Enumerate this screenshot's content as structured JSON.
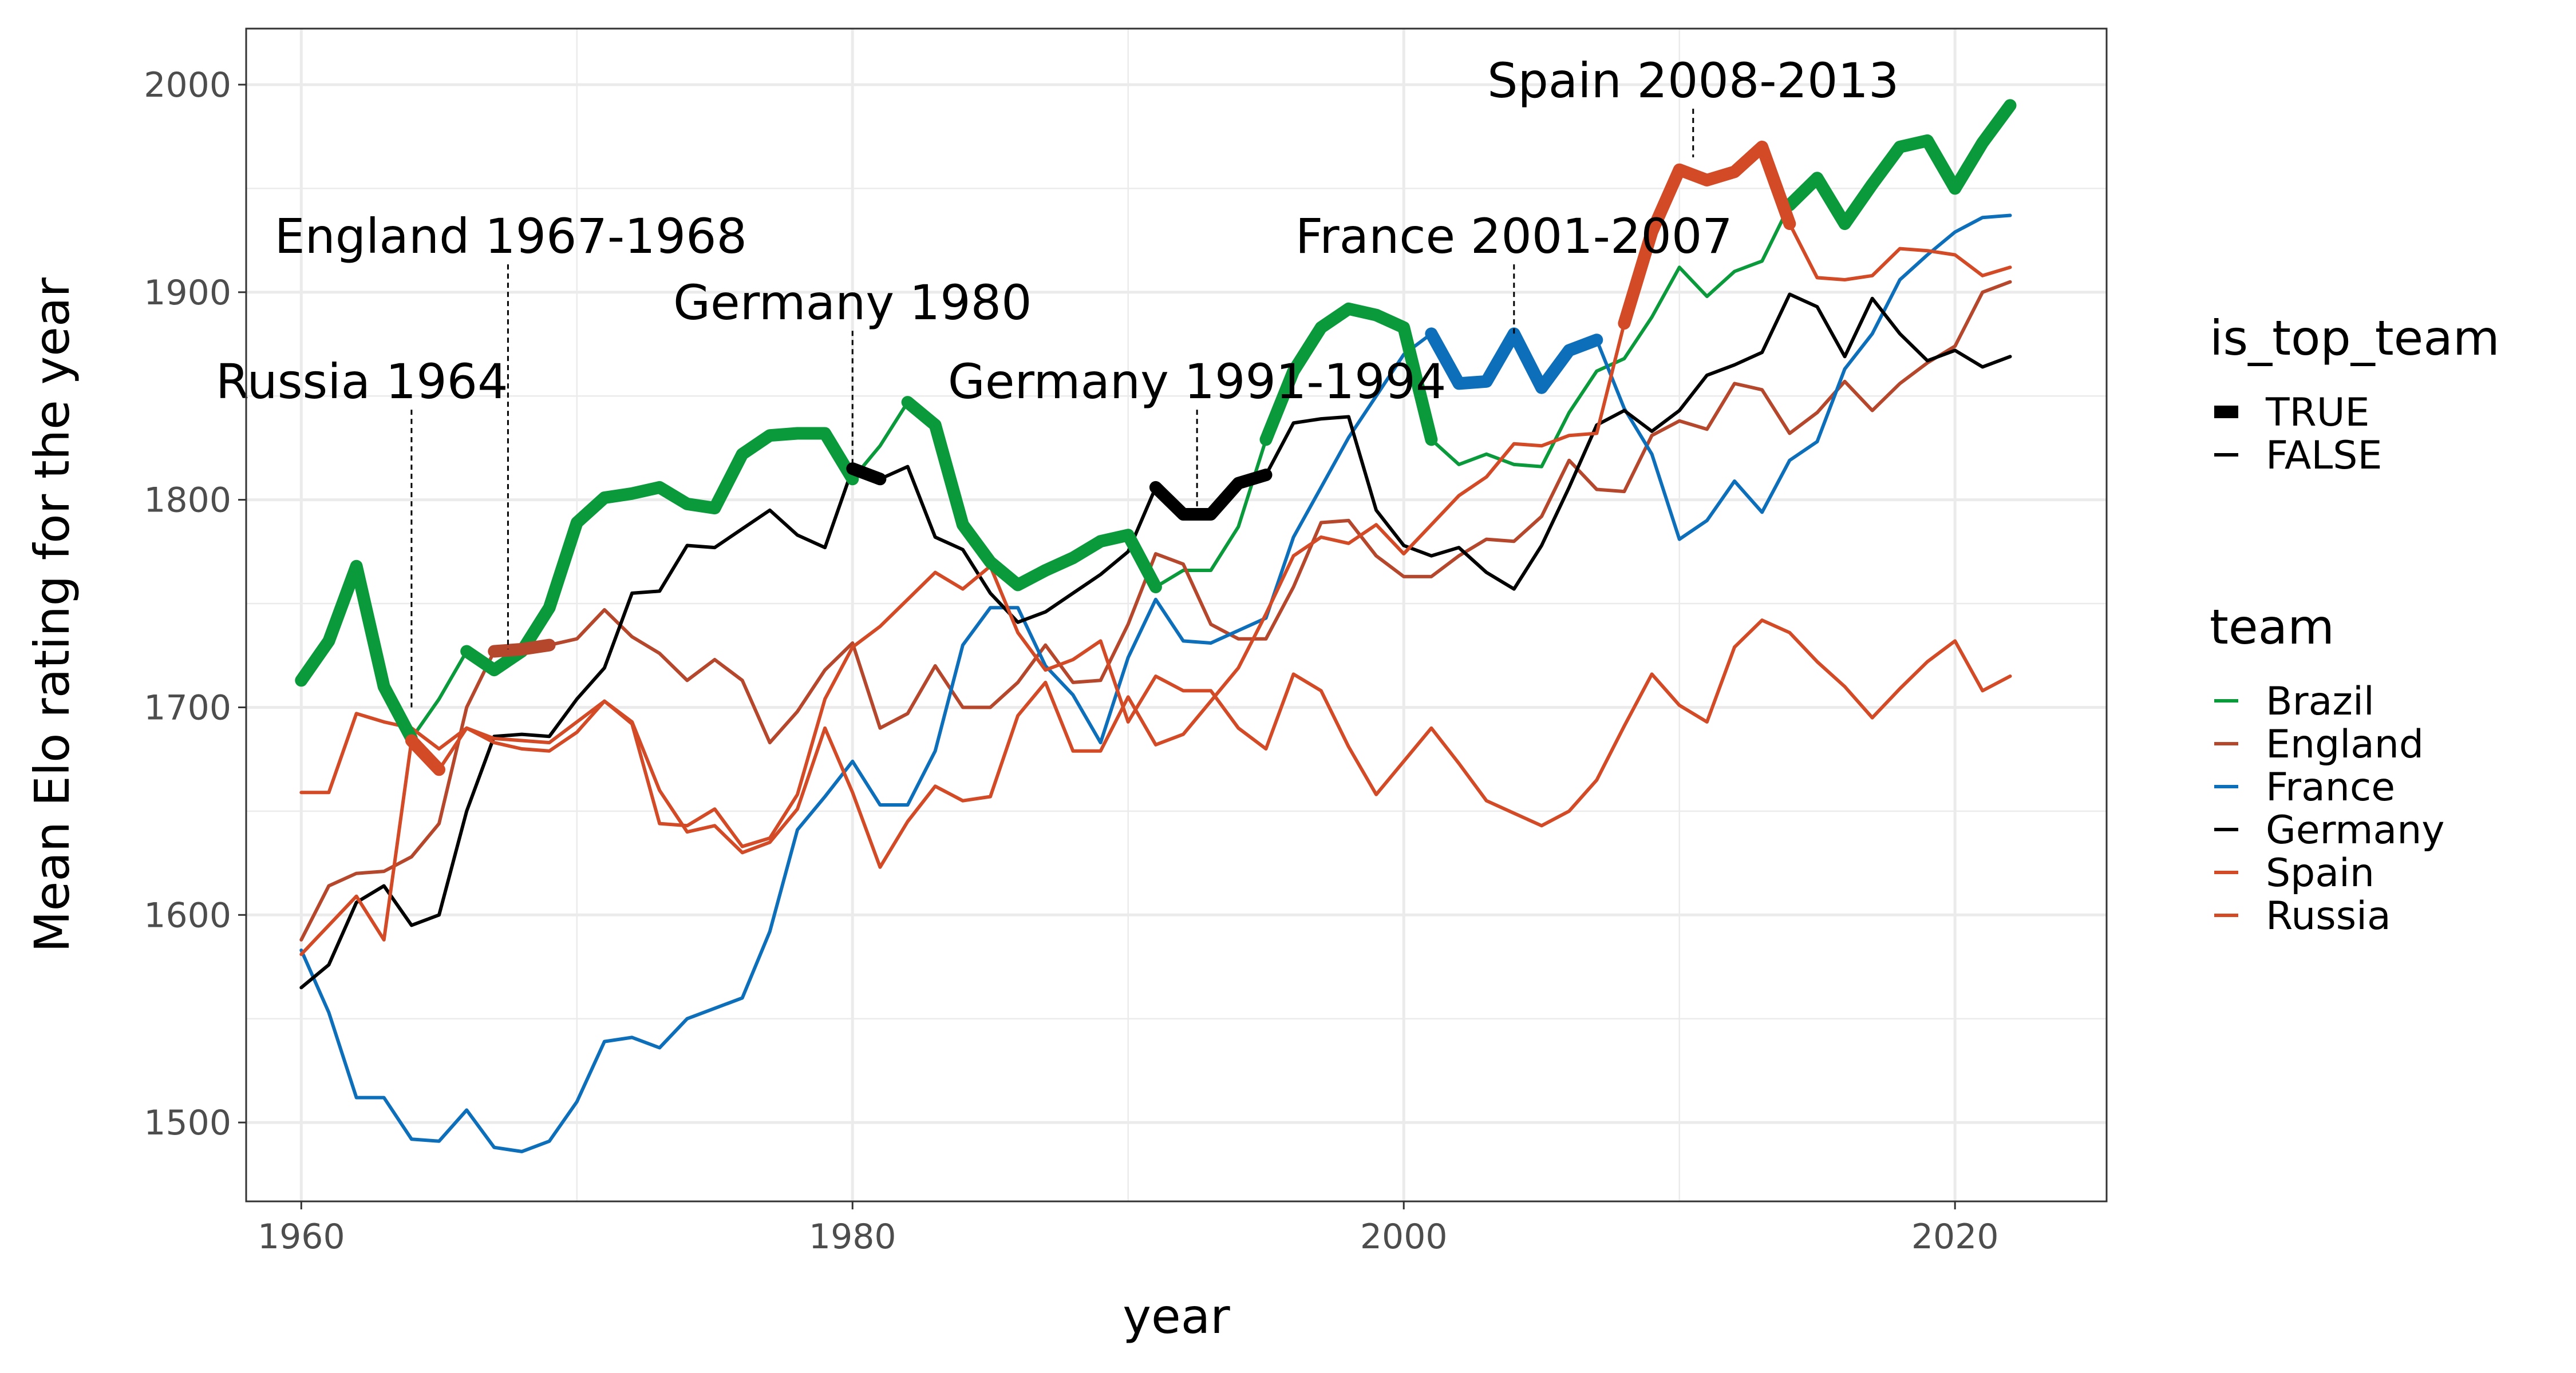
{
  "chart_data": {
    "type": "line",
    "xlabel": "year",
    "ylabel": "Mean Elo rating for the year",
    "xlim": [
      1958,
      2025.5
    ],
    "ylim": [
      1462,
      2027
    ],
    "x_ticks": [
      1960,
      1980,
      2000,
      2020
    ],
    "x_tick_labels": [
      "1960",
      "1980",
      "2000",
      "2020"
    ],
    "y_ticks": [
      1500,
      1600,
      1700,
      1800,
      1900,
      2000
    ],
    "y_tick_labels": [
      "1500",
      "1600",
      "1700",
      "1800",
      "1900",
      "2000"
    ],
    "grid": true,
    "years": [
      1960,
      1961,
      1962,
      1963,
      1964,
      1965,
      1966,
      1967,
      1968,
      1969,
      1970,
      1971,
      1972,
      1973,
      1974,
      1975,
      1976,
      1977,
      1978,
      1979,
      1980,
      1981,
      1982,
      1983,
      1984,
      1985,
      1986,
      1987,
      1988,
      1989,
      1990,
      1991,
      1992,
      1993,
      1994,
      1995,
      1996,
      1997,
      1998,
      1999,
      2000,
      2001,
      2002,
      2003,
      2004,
      2005,
      2006,
      2007,
      2008,
      2009,
      2010,
      2011,
      2012,
      2013,
      2014,
      2015,
      2016,
      2017,
      2018,
      2019,
      2020,
      2021,
      2022
    ],
    "series": [
      {
        "name": "Brazil",
        "color": "#0a9a3c",
        "values": [
          1713,
          1732,
          1768,
          1710,
          1685,
          1704,
          1727,
          1718,
          1727,
          1748,
          1789,
          1801,
          1803,
          1806,
          1798,
          1796,
          1822,
          1831,
          1832,
          1832,
          1810,
          1826,
          1847,
          1836,
          1788,
          1770,
          1759,
          1766,
          1772,
          1780,
          1783,
          1758,
          1766,
          1766,
          1787,
          1829,
          1862,
          1883,
          1892,
          1889,
          1883,
          1829,
          1817,
          1822,
          1817,
          1816,
          1842,
          1862,
          1868,
          1888,
          1912,
          1898,
          1910,
          1915,
          1942,
          1955,
          1933,
          1952,
          1970,
          1973,
          1950,
          1972,
          1990
        ],
        "top": [
          1,
          1,
          1,
          1,
          1,
          0,
          1,
          1,
          1,
          1,
          1,
          1,
          1,
          1,
          1,
          1,
          1,
          1,
          1,
          1,
          1,
          0,
          1,
          1,
          1,
          1,
          1,
          1,
          1,
          1,
          1,
          1,
          0,
          0,
          0,
          1,
          1,
          1,
          1,
          1,
          1,
          1,
          0,
          0,
          0,
          0,
          0,
          0,
          0,
          0,
          0,
          0,
          0,
          0,
          1,
          1,
          1,
          1,
          1,
          1,
          1,
          1,
          1
        ]
      },
      {
        "name": "England",
        "color": "#b5472c",
        "values": [
          1588,
          1614,
          1620,
          1621,
          1628,
          1644,
          1700,
          1727,
          1728,
          1730,
          1733,
          1747,
          1734,
          1726,
          1713,
          1723,
          1713,
          1683,
          1698,
          1718,
          1731,
          1690,
          1697,
          1720,
          1700,
          1700,
          1712,
          1730,
          1712,
          1713,
          1740,
          1774,
          1769,
          1740,
          1733,
          1733,
          1758,
          1789,
          1790,
          1773,
          1763,
          1763,
          1773,
          1781,
          1780,
          1792,
          1819,
          1805,
          1804,
          1831,
          1838,
          1834,
          1856,
          1853,
          1832,
          1842,
          1857,
          1843,
          1856,
          1866,
          1874,
          1900,
          1905
        ],
        "top": [
          0,
          0,
          0,
          0,
          0,
          0,
          0,
          1,
          1,
          1,
          0,
          0,
          0,
          0,
          0,
          0,
          0,
          0,
          0,
          0,
          0,
          0,
          0,
          0,
          0,
          0,
          0,
          0,
          0,
          0,
          0,
          0,
          0,
          0,
          0,
          0,
          0,
          0,
          0,
          0,
          0,
          0,
          0,
          0,
          0,
          0,
          0,
          0,
          0,
          0,
          0,
          0,
          0,
          0,
          0,
          0,
          0,
          0,
          0,
          0,
          0,
          0,
          0
        ]
      },
      {
        "name": "France",
        "color": "#0d6fba",
        "values": [
          1583,
          1553,
          1512,
          1512,
          1492,
          1491,
          1506,
          1488,
          1486,
          1491,
          1510,
          1539,
          1541,
          1536,
          1550,
          1555,
          1560,
          1592,
          1641,
          1657,
          1674,
          1653,
          1653,
          1679,
          1730,
          1748,
          1748,
          1720,
          1706,
          1683,
          1724,
          1752,
          1732,
          1731,
          1737,
          1743,
          1782,
          1806,
          1830,
          1850,
          1870,
          1880,
          1856,
          1857,
          1880,
          1854,
          1872,
          1877,
          1844,
          1822,
          1781,
          1790,
          1809,
          1794,
          1819,
          1828,
          1863,
          1880,
          1906,
          1918,
          1929,
          1936,
          1937
        ],
        "top": [
          0,
          0,
          0,
          0,
          0,
          0,
          0,
          0,
          0,
          0,
          0,
          0,
          0,
          0,
          0,
          0,
          0,
          0,
          0,
          0,
          0,
          0,
          0,
          0,
          0,
          0,
          0,
          0,
          0,
          0,
          0,
          0,
          0,
          0,
          0,
          0,
          0,
          0,
          0,
          0,
          0,
          1,
          1,
          1,
          1,
          1,
          1,
          1,
          0,
          0,
          0,
          0,
          0,
          0,
          0,
          0,
          0,
          0,
          0,
          0,
          0,
          0,
          0
        ]
      },
      {
        "name": "Germany",
        "color": "#000000",
        "values": [
          1565,
          1576,
          1606,
          1614,
          1595,
          1600,
          1650,
          1686,
          1687,
          1686,
          1704,
          1719,
          1755,
          1756,
          1778,
          1777,
          1786,
          1795,
          1783,
          1777,
          1815,
          1810,
          1816,
          1782,
          1776,
          1755,
          1741,
          1746,
          1755,
          1764,
          1775,
          1806,
          1793,
          1793,
          1808,
          1812,
          1837,
          1839,
          1840,
          1795,
          1778,
          1773,
          1777,
          1765,
          1757,
          1778,
          1806,
          1836,
          1843,
          1833,
          1843,
          1860,
          1865,
          1871,
          1899,
          1893,
          1869,
          1897,
          1880,
          1867,
          1872,
          1864,
          1869
        ],
        "top": [
          0,
          0,
          0,
          0,
          0,
          0,
          0,
          0,
          0,
          0,
          0,
          0,
          0,
          0,
          0,
          0,
          0,
          0,
          0,
          0,
          1,
          1,
          0,
          0,
          0,
          0,
          0,
          0,
          0,
          0,
          0,
          1,
          1,
          1,
          1,
          1,
          0,
          0,
          0,
          0,
          0,
          0,
          0,
          0,
          0,
          0,
          0,
          0,
          0,
          0,
          0,
          0,
          0,
          0,
          0,
          0,
          0,
          0,
          0,
          0,
          0,
          0,
          0
        ]
      },
      {
        "name": "Spain",
        "color": "#d24a26",
        "values": [
          1659,
          1659,
          1697,
          1693,
          1690,
          1680,
          1690,
          1683,
          1680,
          1679,
          1688,
          1703,
          1693,
          1660,
          1640,
          1643,
          1630,
          1635,
          1651,
          1690,
          1659,
          1623,
          1645,
          1662,
          1655,
          1657,
          1696,
          1712,
          1679,
          1679,
          1705,
          1682,
          1687,
          1703,
          1719,
          1745,
          1773,
          1782,
          1779,
          1788,
          1774,
          1788,
          1802,
          1811,
          1827,
          1826,
          1831,
          1832,
          1885,
          1929,
          1959,
          1954,
          1958,
          1970,
          1933,
          1907,
          1906,
          1908,
          1921,
          1920,
          1918,
          1908,
          1912
        ],
        "top": [
          0,
          0,
          0,
          0,
          0,
          0,
          0,
          0,
          0,
          0,
          0,
          0,
          0,
          0,
          0,
          0,
          0,
          0,
          0,
          0,
          0,
          0,
          0,
          0,
          0,
          0,
          0,
          0,
          0,
          0,
          0,
          0,
          0,
          0,
          0,
          0,
          0,
          0,
          0,
          0,
          0,
          0,
          0,
          0,
          0,
          0,
          0,
          0,
          1,
          1,
          1,
          1,
          1,
          1,
          1,
          0,
          0,
          0,
          0,
          0,
          0,
          0,
          0
        ]
      },
      {
        "name": "Russia",
        "color": "#d24a26",
        "values": [
          1581,
          1595,
          1609,
          1588,
          1684,
          1670,
          1690,
          1685,
          1684,
          1683,
          1693,
          1703,
          1692,
          1644,
          1643,
          1651,
          1633,
          1637,
          1658,
          1704,
          1729,
          1739,
          1752,
          1765,
          1757,
          1768,
          1736,
          1718,
          1723,
          1732,
          1693,
          1715,
          1708,
          1708,
          1690,
          1680,
          1716,
          1708,
          1681,
          1658,
          1674,
          1690,
          1673,
          1655,
          1649,
          1643,
          1650,
          1665,
          1691,
          1716,
          1701,
          1693,
          1729,
          1742,
          1736,
          1722,
          1710,
          1695,
          1709,
          1722,
          1732,
          1708,
          1715
        ],
        "top": [
          0,
          0,
          0,
          0,
          1,
          1,
          0,
          0,
          0,
          0,
          0,
          0,
          0,
          0,
          0,
          0,
          0,
          0,
          0,
          0,
          0,
          0,
          0,
          0,
          0,
          0,
          0,
          0,
          0,
          0,
          0,
          0,
          0,
          0,
          0,
          0,
          0,
          0,
          0,
          0,
          0,
          0,
          0,
          0,
          0,
          0,
          0,
          0,
          0,
          0,
          0,
          0,
          0,
          0,
          0,
          0,
          0,
          0,
          0,
          0,
          0,
          0,
          0
        ]
      }
    ],
    "annotations": [
      {
        "label": "Russia 1964",
        "x": 1964,
        "y": 1700,
        "label_y": 1855,
        "label_x": 1962.2
      },
      {
        "label": "England 1967-1968",
        "x": 1967.5,
        "y": 1728,
        "label_y": 1925,
        "label_x": 1967.6
      },
      {
        "label": "Germany 1980",
        "x": 1980,
        "y": 1815,
        "label_y": 1893,
        "label_x": 1980
      },
      {
        "label": "Germany 1991-1994",
        "x": 1992.5,
        "y": 1793,
        "label_y": 1855,
        "label_x": 1992.5
      },
      {
        "label": "France 2001-2007",
        "x": 2004,
        "y": 1880,
        "label_y": 1925,
        "label_x": 2004
      },
      {
        "label": "Spain 2008-2013",
        "x": 2010.5,
        "y": 1965,
        "label_y": 2000,
        "label_x": 2010.5
      }
    ],
    "legend": {
      "position": "right",
      "linetype_title": "is_top_team",
      "linetype_entries": [
        "TRUE",
        "FALSE"
      ],
      "color_title": "team",
      "color_entries": [
        "Brazil",
        "England",
        "France",
        "Germany",
        "Spain",
        "Russia"
      ]
    }
  }
}
